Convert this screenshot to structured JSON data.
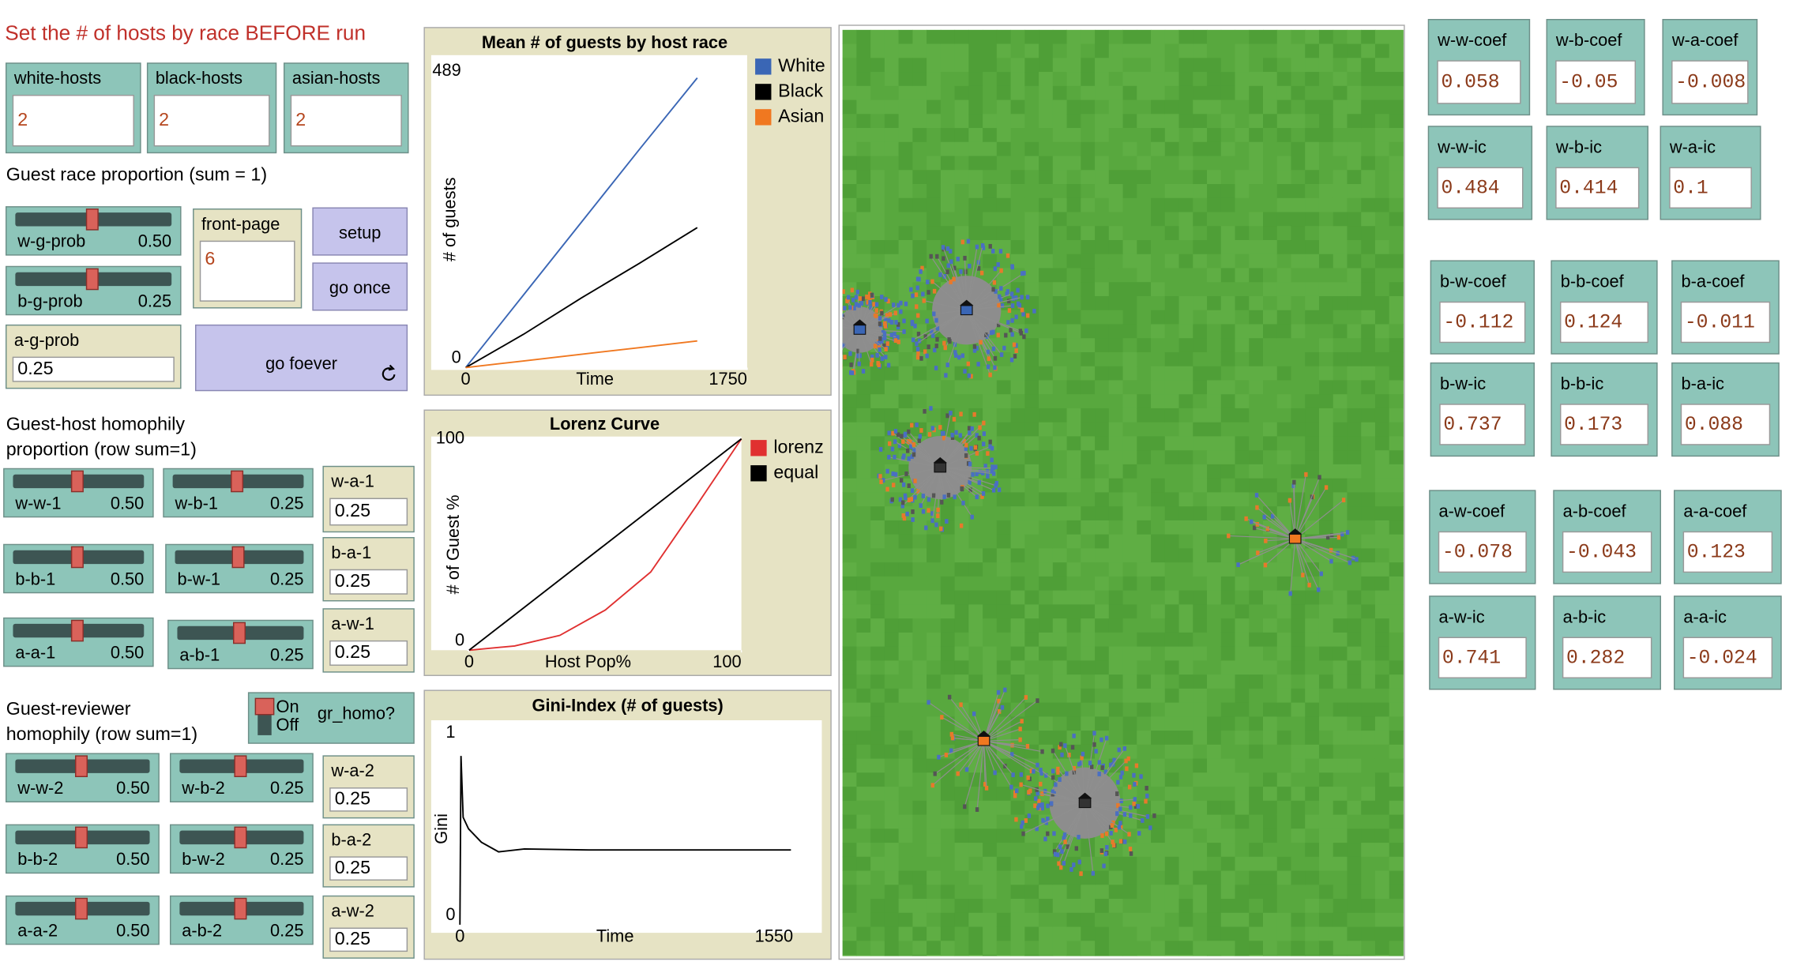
{
  "interface": {
    "note": "Set the # of hosts by race BEFORE run",
    "labels": [
      "Guest race proportion (sum = 1)",
      "Guest-host homophily",
      "proportion (row sum=1)",
      "Guest-reviewer",
      "homophily (row sum=1)"
    ],
    "inputs": [
      {
        "label": "white-hosts",
        "value": "2"
      },
      {
        "label": "black-hosts",
        "value": "2"
      },
      {
        "label": "asian-hosts",
        "value": "2"
      },
      {
        "label": "a-g-prob",
        "value": "0.25"
      },
      {
        "label": "front-page",
        "value": "6"
      },
      {
        "label": "w-a-1",
        "value": "0.25"
      },
      {
        "label": "b-a-1",
        "value": "0.25"
      },
      {
        "label": "a-w-1",
        "value": "0.25"
      },
      {
        "label": "w-a-2",
        "value": "0.25"
      },
      {
        "label": "b-a-2",
        "value": "0.25"
      },
      {
        "label": "a-w-2",
        "value": "0.25"
      }
    ],
    "sliders": [
      {
        "label": "w-g-prob",
        "value": "0.50"
      },
      {
        "label": "b-g-prob",
        "value": "0.25"
      },
      {
        "label": "w-w-1",
        "value": "0.50"
      },
      {
        "label": "w-b-1",
        "value": "0.25"
      },
      {
        "label": "b-b-1",
        "value": "0.50"
      },
      {
        "label": "b-w-1",
        "value": "0.25"
      },
      {
        "label": "a-a-1",
        "value": "0.50"
      },
      {
        "label": "a-b-1",
        "value": "0.25"
      },
      {
        "label": "w-w-2",
        "value": "0.50"
      },
      {
        "label": "w-b-2",
        "value": "0.25"
      },
      {
        "label": "b-b-2",
        "value": "0.50"
      },
      {
        "label": "b-w-2",
        "value": "0.25"
      },
      {
        "label": "a-a-2",
        "value": "0.50"
      },
      {
        "label": "a-b-2",
        "value": "0.25"
      }
    ],
    "buttons": [
      "setup",
      "go once",
      "go foever"
    ],
    "switch": {
      "label": "gr_homo?",
      "on": "On",
      "off": "Off"
    },
    "monitors": [
      {
        "label": "w-w-coef",
        "value": "0.058"
      },
      {
        "label": "w-b-coef",
        "value": "-0.05"
      },
      {
        "label": "w-a-coef",
        "value": "-0.008"
      },
      {
        "label": "w-w-ic",
        "value": "0.484"
      },
      {
        "label": "w-b-ic",
        "value": "0.414"
      },
      {
        "label": "w-a-ic",
        "value": "0.1"
      },
      {
        "label": "b-w-coef",
        "value": "-0.112"
      },
      {
        "label": "b-b-coef",
        "value": "0.124"
      },
      {
        "label": "b-a-coef",
        "value": "-0.011"
      },
      {
        "label": "b-w-ic",
        "value": "0.737"
      },
      {
        "label": "b-b-ic",
        "value": "0.173"
      },
      {
        "label": "b-a-ic",
        "value": "0.088"
      },
      {
        "label": "a-w-coef",
        "value": "-0.078"
      },
      {
        "label": "a-b-coef",
        "value": "-0.043"
      },
      {
        "label": "a-a-coef",
        "value": "0.123"
      },
      {
        "label": "a-w-ic",
        "value": "0.741"
      },
      {
        "label": "a-b-ic",
        "value": "0.282"
      },
      {
        "label": "a-a-ic",
        "value": "-0.024"
      }
    ]
  },
  "chart_data": [
    {
      "type": "line",
      "title": "Mean # of guests by host race",
      "x_label": "Time",
      "y_label": "# of guests",
      "xlim": [
        0,
        1750
      ],
      "ylim": [
        0,
        489
      ],
      "xticks": [
        0,
        1750
      ],
      "yticks": [
        0,
        489
      ],
      "x": [
        0,
        360,
        720,
        1080,
        1440
      ],
      "series": [
        {
          "name": "White",
          "color": "#3a66b5",
          "values": [
            0,
            120,
            240,
            360,
            478
          ]
        },
        {
          "name": "Black",
          "color": "#000000",
          "values": [
            0,
            55,
            115,
            172,
            231
          ]
        },
        {
          "name": "Asian",
          "color": "#f07820",
          "values": [
            0,
            11,
            22,
            33,
            44
          ]
        }
      ]
    },
    {
      "type": "line",
      "title": "Lorenz Curve",
      "x_label": "Host Pop%",
      "y_label": "# of Guest %",
      "xlim": [
        0,
        100
      ],
      "ylim": [
        0,
        100
      ],
      "xticks": [
        0,
        100
      ],
      "yticks": [
        0,
        100
      ],
      "x": [
        0,
        16.7,
        33.3,
        50,
        66.7,
        83.3,
        100
      ],
      "series": [
        {
          "name": "lorenz",
          "color": "#e03030",
          "values": [
            0,
            2,
            7,
            19,
            37,
            68,
            100
          ]
        },
        {
          "name": "equal",
          "color": "#000000",
          "values": [
            0,
            16.7,
            33.3,
            50,
            66.7,
            83.3,
            100
          ]
        }
      ]
    },
    {
      "type": "line",
      "title": "Gini-Index (# of guests)",
      "x_label": "Time",
      "y_label": "Gini",
      "xlim": [
        0,
        1550
      ],
      "ylim": [
        0,
        1
      ],
      "xticks": [
        0,
        1550
      ],
      "yticks": [
        0,
        1
      ],
      "x": [
        0,
        5,
        15,
        40,
        100,
        180,
        300,
        600,
        1000,
        1540
      ],
      "series": [
        {
          "color": "#000000",
          "values": [
            0,
            0.88,
            0.56,
            0.5,
            0.43,
            0.38,
            0.395,
            0.39,
            0.39,
            0.39
          ]
        }
      ]
    }
  ]
}
